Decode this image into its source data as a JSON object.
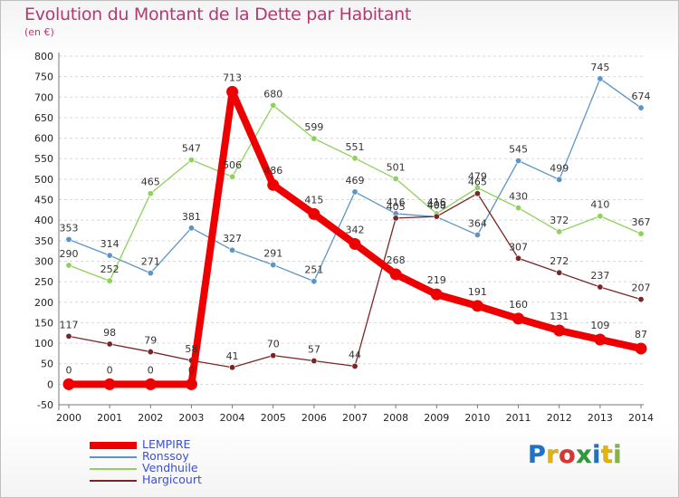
{
  "title": "Evolution du Montant de la Dette par Habitant",
  "subtitle": "(en €)",
  "logo": {
    "letters": [
      "P",
      "r",
      "o",
      "x",
      "i",
      "t",
      "i"
    ],
    "colors": [
      "#1e73c8",
      "#e8b400",
      "#e0332e",
      "#2f9a3b",
      "#1e73c8",
      "#e8b400",
      "#7fb83c"
    ]
  },
  "chart_data": {
    "type": "line",
    "x": [
      2000,
      2001,
      2002,
      2003,
      2004,
      2005,
      2006,
      2007,
      2008,
      2009,
      2010,
      2011,
      2012,
      2013,
      2014
    ],
    "ylim": [
      -50,
      800
    ],
    "yticks": [
      -50,
      0,
      50,
      100,
      150,
      200,
      250,
      300,
      350,
      400,
      450,
      500,
      550,
      600,
      650,
      700,
      750,
      800
    ],
    "grid": "horizontal",
    "legend_position": "bottom-left",
    "series": [
      {
        "name": "Ronssoy",
        "color": "#5b95c8",
        "values": [
          353,
          314,
          271,
          381,
          327,
          291,
          251,
          469,
          416,
          408,
          364,
          545,
          499,
          745,
          674
        ],
        "labels": [
          "353",
          "314",
          "271",
          "381",
          "327",
          "291",
          "251",
          "469",
          "416",
          "408",
          "364",
          "545",
          "499",
          "745",
          "674"
        ]
      },
      {
        "name": "Vendhuile",
        "color": "#8ed15b",
        "values": [
          290,
          252,
          465,
          547,
          506,
          680,
          599,
          551,
          501,
          416,
          479,
          430,
          372,
          410,
          367
        ],
        "labels": [
          "290",
          "252",
          "465",
          "547",
          "506",
          "680",
          "599",
          "551",
          "501",
          "416",
          "479",
          "430",
          "372",
          "410",
          "367"
        ]
      },
      {
        "name": "Hargicourt",
        "color": "#7a2525",
        "values": [
          117,
          98,
          79,
          58,
          41,
          70,
          57,
          44,
          405,
          409,
          465,
          307,
          272,
          237,
          207
        ],
        "labels": [
          "117",
          "98",
          "79",
          "58",
          "41",
          "70",
          "57",
          "44",
          "405",
          "409",
          "465",
          "307",
          "272",
          "237",
          "207"
        ]
      },
      {
        "name": "LEMPIRE",
        "color": "#ee0000",
        "values": [
          0,
          0,
          0,
          0,
          713,
          486,
          415,
          342,
          268,
          219,
          191,
          160,
          131,
          109,
          87
        ],
        "labels": [
          "0",
          "0",
          "0",
          "0",
          "713",
          "486",
          "415",
          "342",
          "268",
          "219",
          "191",
          "160",
          "131",
          "109",
          "87"
        ]
      }
    ]
  },
  "legend": [
    {
      "name": "LEMPIRE",
      "color": "#ee0000",
      "text_color": "#3a4fd6"
    },
    {
      "name": "Ronssoy",
      "color": "#5b95c8",
      "text_color": "#3a4fd6"
    },
    {
      "name": "Vendhuile",
      "color": "#8ed15b",
      "text_color": "#3a4fd6"
    },
    {
      "name": "Hargicourt",
      "color": "#7a2525",
      "text_color": "#3a4fd6"
    }
  ]
}
